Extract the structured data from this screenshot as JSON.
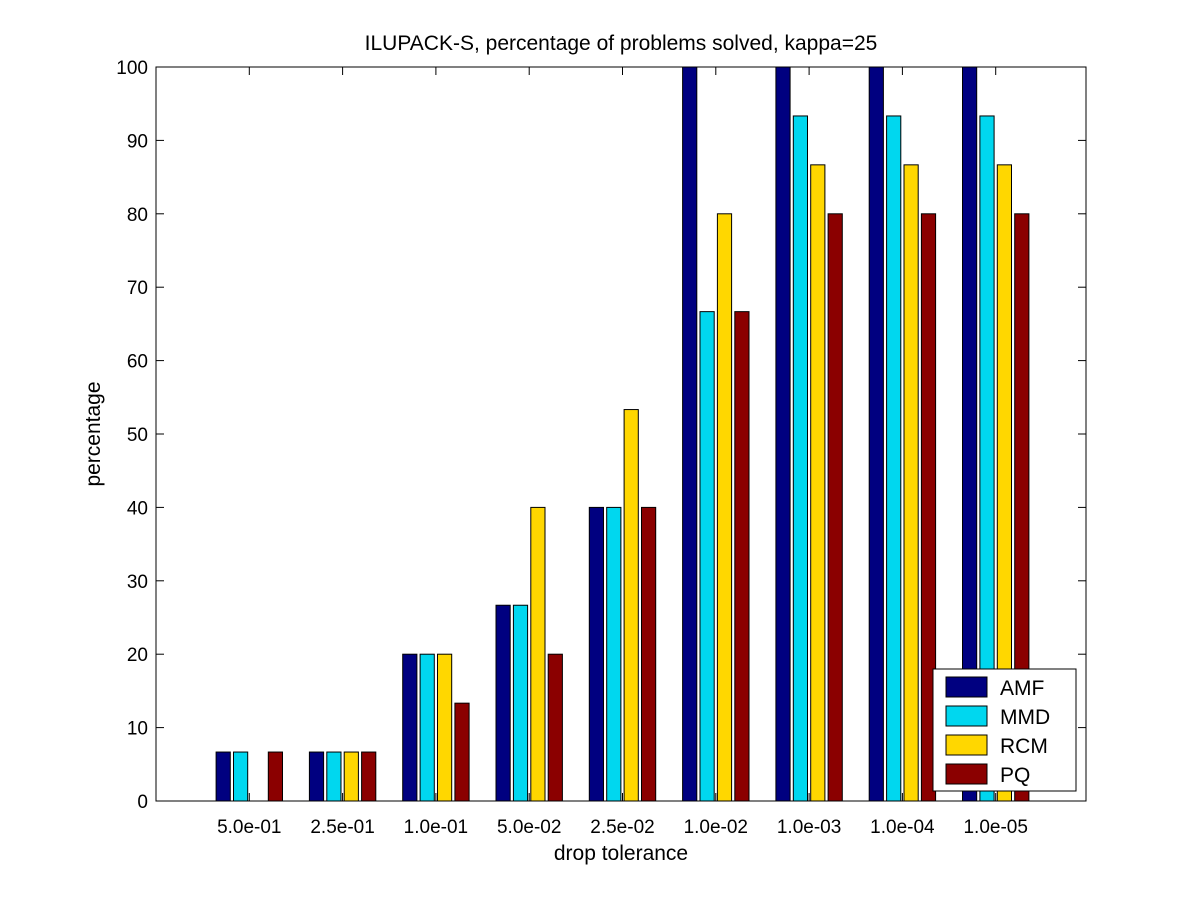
{
  "chart_data": {
    "type": "bar",
    "title": "ILUPACK-S, percentage of problems solved, kappa=25",
    "xlabel": "drop tolerance",
    "ylabel": "percentage",
    "ylim": [
      0,
      100
    ],
    "yticks": [
      0,
      10,
      20,
      30,
      40,
      50,
      60,
      70,
      80,
      90,
      100
    ],
    "categories": [
      "5.0e-01",
      "2.5e-01",
      "1.0e-01",
      "5.0e-02",
      "2.5e-02",
      "1.0e-02",
      "1.0e-03",
      "1.0e-04",
      "1.0e-05"
    ],
    "series": [
      {
        "name": "AMF",
        "color": "#000080",
        "values": [
          6.67,
          6.67,
          20,
          26.67,
          40,
          100,
          100,
          100,
          100
        ]
      },
      {
        "name": "MMD",
        "color": "#00d7ef",
        "values": [
          6.67,
          6.67,
          20,
          26.67,
          40,
          66.67,
          93.33,
          93.33,
          93.33
        ]
      },
      {
        "name": "RCM",
        "color": "#ffd700",
        "values": [
          0,
          6.67,
          20,
          40,
          53.33,
          80,
          86.67,
          86.67,
          86.67
        ]
      },
      {
        "name": "PQ",
        "color": "#8b0000",
        "values": [
          6.67,
          6.67,
          13.33,
          20,
          40,
          66.67,
          80,
          80,
          80
        ]
      }
    ],
    "legend_position": "bottom-right",
    "grid": false
  }
}
